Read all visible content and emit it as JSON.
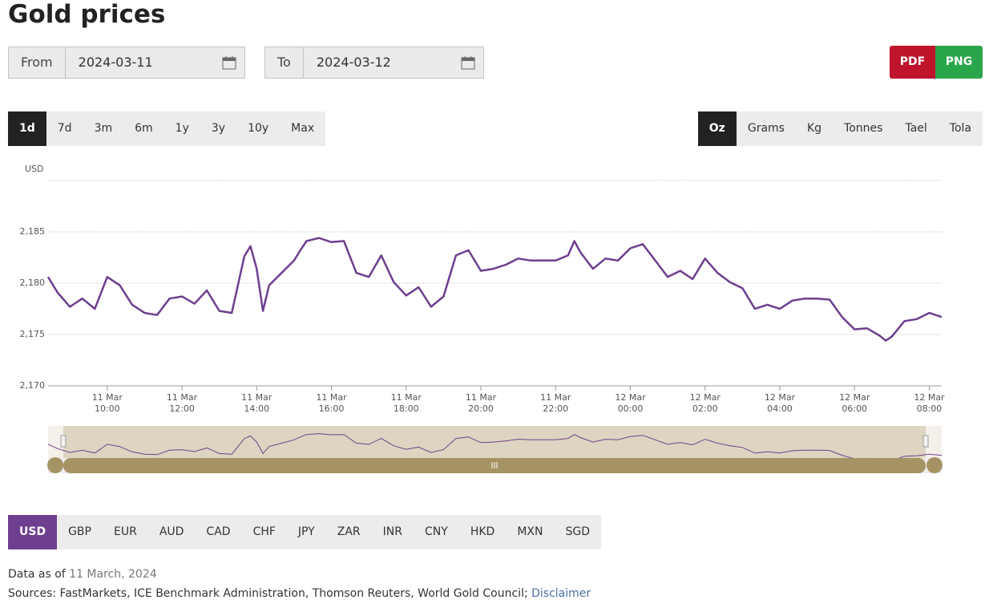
{
  "title": "Gold prices",
  "from": {
    "label": "From",
    "value": "2024-03-11"
  },
  "to": {
    "label": "To",
    "value": "2024-03-12"
  },
  "exports": [
    "PDF",
    "PNG"
  ],
  "ranges": [
    "1d",
    "7d",
    "3m",
    "6m",
    "1y",
    "3y",
    "10y",
    "Max"
  ],
  "units": [
    "Oz",
    "Grams",
    "Kg",
    "Tonnes",
    "Tael",
    "Tola"
  ],
  "currencies": [
    "USD",
    "GBP",
    "EUR",
    "AUD",
    "CAD",
    "CHF",
    "JPY",
    "ZAR",
    "INR",
    "CNY",
    "HKD",
    "MXN",
    "SGD"
  ],
  "footer": {
    "data_as_of_label": "Data as of",
    "data_as_of_date": "11 March, 2024",
    "sources": "Sources: FastMarkets, ICE Benchmark Administration, Thomson Reuters, World Gold Council;",
    "disclaimer": "Disclaimer"
  },
  "chart_data": {
    "type": "line",
    "y_label": "USD",
    "grid": true,
    "xlim": [
      "2024-03-11 08:25",
      "2024-03-12 08:20"
    ],
    "xticks": [
      {
        "value": "2024-03-11 10:00",
        "label": "11 Mar\n10:00"
      },
      {
        "value": "2024-03-11 12:00",
        "label": "11 Mar\n12:00"
      },
      {
        "value": "2024-03-11 14:00",
        "label": "11 Mar\n14:00"
      },
      {
        "value": "2024-03-11 16:00",
        "label": "11 Mar\n16:00"
      },
      {
        "value": "2024-03-11 18:00",
        "label": "11 Mar\n18:00"
      },
      {
        "value": "2024-03-11 20:00",
        "label": "11 Mar\n20:00"
      },
      {
        "value": "2024-03-11 22:00",
        "label": "11 Mar\n22:00"
      },
      {
        "value": "2024-03-12 00:00",
        "label": "12 Mar\n00:00"
      },
      {
        "value": "2024-03-12 02:00",
        "label": "12 Mar\n02:00"
      },
      {
        "value": "2024-03-12 04:00",
        "label": "12 Mar\n04:00"
      },
      {
        "value": "2024-03-12 06:00",
        "label": "12 Mar\n06:00"
      },
      {
        "value": "2024-03-12 08:00",
        "label": "12 Mar\n08:00"
      }
    ],
    "ylim": [
      2170,
      2190
    ],
    "yticks": [
      {
        "value": 2170,
        "label": "2,170"
      },
      {
        "value": 2175,
        "label": "2,175"
      },
      {
        "value": 2180,
        "label": "2,180"
      },
      {
        "value": 2185,
        "label": "2,185"
      }
    ],
    "series": [
      {
        "name": "USD",
        "color": "#6e3f8f",
        "x": [
          "2024-03-11 08:25",
          "2024-03-11 08:40",
          "2024-03-11 09:00",
          "2024-03-11 09:20",
          "2024-03-11 09:40",
          "2024-03-11 10:00",
          "2024-03-11 10:20",
          "2024-03-11 10:40",
          "2024-03-11 11:00",
          "2024-03-11 11:20",
          "2024-03-11 11:40",
          "2024-03-11 12:00",
          "2024-03-11 12:20",
          "2024-03-11 12:40",
          "2024-03-11 13:00",
          "2024-03-11 13:20",
          "2024-03-11 13:40",
          "2024-03-11 13:50",
          "2024-03-11 14:00",
          "2024-03-11 14:10",
          "2024-03-11 14:20",
          "2024-03-11 14:40",
          "2024-03-11 15:00",
          "2024-03-11 15:10",
          "2024-03-11 15:20",
          "2024-03-11 15:40",
          "2024-03-11 16:00",
          "2024-03-11 16:20",
          "2024-03-11 16:40",
          "2024-03-11 17:00",
          "2024-03-11 17:20",
          "2024-03-11 17:40",
          "2024-03-11 18:00",
          "2024-03-11 18:20",
          "2024-03-11 18:40",
          "2024-03-11 19:00",
          "2024-03-11 19:20",
          "2024-03-11 19:40",
          "2024-03-11 20:00",
          "2024-03-11 20:20",
          "2024-03-11 20:40",
          "2024-03-11 21:00",
          "2024-03-11 21:20",
          "2024-03-11 21:40",
          "2024-03-11 22:00",
          "2024-03-11 22:20",
          "2024-03-11 22:30",
          "2024-03-11 22:40",
          "2024-03-11 23:00",
          "2024-03-11 23:20",
          "2024-03-11 23:40",
          "2024-03-12 00:00",
          "2024-03-12 00:20",
          "2024-03-12 00:40",
          "2024-03-12 01:00",
          "2024-03-12 01:20",
          "2024-03-12 01:40",
          "2024-03-12 02:00",
          "2024-03-12 02:20",
          "2024-03-12 02:40",
          "2024-03-12 03:00",
          "2024-03-12 03:20",
          "2024-03-12 03:40",
          "2024-03-12 04:00",
          "2024-03-12 04:20",
          "2024-03-12 04:40",
          "2024-03-12 05:00",
          "2024-03-12 05:20",
          "2024-03-12 05:40",
          "2024-03-12 06:00",
          "2024-03-12 06:20",
          "2024-03-12 06:40",
          "2024-03-12 06:50",
          "2024-03-12 07:00",
          "2024-03-12 07:20",
          "2024-03-12 07:40",
          "2024-03-12 08:00",
          "2024-03-12 08:20"
        ],
        "values": [
          2180.6,
          2179.1,
          2177.7,
          2178.5,
          2177.5,
          2180.6,
          2179.8,
          2177.9,
          2177.1,
          2176.9,
          2178.5,
          2178.7,
          2178.0,
          2179.3,
          2177.3,
          2177.1,
          2182.6,
          2183.6,
          2181.4,
          2177.3,
          2179.8,
          2181.0,
          2182.2,
          2183.2,
          2184.1,
          2184.4,
          2184.0,
          2184.1,
          2181.0,
          2180.6,
          2182.7,
          2180.1,
          2178.8,
          2179.6,
          2177.7,
          2178.7,
          2182.7,
          2183.2,
          2181.2,
          2181.4,
          2181.8,
          2182.4,
          2182.2,
          2182.2,
          2182.2,
          2182.7,
          2184.1,
          2183.0,
          2181.4,
          2182.4,
          2182.2,
          2183.4,
          2183.8,
          2182.2,
          2180.6,
          2181.2,
          2180.4,
          2182.4,
          2181.0,
          2180.1,
          2179.5,
          2177.5,
          2177.9,
          2177.5,
          2178.3,
          2178.5,
          2178.5,
          2178.4,
          2176.7,
          2175.5,
          2175.6,
          2174.9,
          2174.4,
          2174.8,
          2176.3,
          2176.5,
          2177.1,
          2176.7
        ]
      }
    ]
  }
}
